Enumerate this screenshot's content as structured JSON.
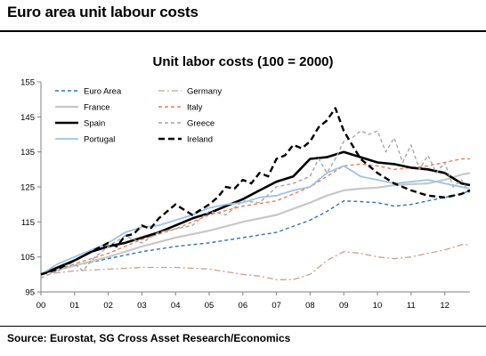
{
  "header": {
    "title": "Euro area unit labour costs"
  },
  "footer": {
    "source": "Source: Eurostat, SG Cross Asset Research/Economics"
  },
  "chart_data": {
    "type": "line",
    "title": "Unit labor costs (100 = 2000)",
    "xlabel": "",
    "ylabel": "",
    "xlim": [
      0,
      12.75
    ],
    "ylim": [
      95,
      155
    ],
    "grid": false,
    "legend_position": "top-left",
    "x_ticks": [
      "00",
      "01",
      "02",
      "03",
      "04",
      "05",
      "06",
      "07",
      "08",
      "09",
      "10",
      "11",
      "12"
    ],
    "y_ticks": [
      95,
      105,
      115,
      125,
      135,
      145,
      155
    ],
    "series": [
      {
        "name": "Euro Area",
        "color": "#2e75b6",
        "dash": "dash",
        "width": 1.4,
        "x": [
          0,
          1,
          2,
          3,
          4,
          5,
          6,
          7,
          8,
          8.5,
          9,
          9.5,
          10,
          10.5,
          11,
          11.5,
          12,
          12.5,
          12.75
        ],
        "y": [
          100,
          102.5,
          104.5,
          106.5,
          108,
          109,
          110.5,
          112,
          115.5,
          118,
          121,
          120.8,
          120.5,
          119.5,
          120,
          121,
          122,
          123,
          124
        ]
      },
      {
        "name": "Germany",
        "color": "#c9a08e",
        "dash": "dashdot",
        "width": 1.3,
        "x": [
          0,
          0.5,
          1,
          2,
          3,
          4,
          5,
          6,
          6.5,
          7,
          7.5,
          8,
          8.5,
          9,
          9.5,
          10,
          10.5,
          11,
          11.5,
          12,
          12.5,
          12.75
        ],
        "y": [
          100,
          100.5,
          101,
          101.5,
          102,
          102,
          101.5,
          100,
          99.5,
          98.5,
          98.5,
          100,
          104,
          106.5,
          106,
          105,
          104.5,
          105,
          106,
          107,
          108.5,
          108.5
        ]
      },
      {
        "name": "France",
        "color": "#c8c8c8",
        "dash": "solid",
        "width": 2.2,
        "x": [
          0,
          1,
          2,
          3,
          4,
          5,
          6,
          7,
          8,
          8.5,
          9,
          9.5,
          10,
          10.5,
          11,
          11.5,
          12,
          12.5,
          12.75
        ],
        "y": [
          100,
          102.5,
          105,
          108,
          110.5,
          112.5,
          115,
          117,
          120.5,
          122.5,
          124,
          124.5,
          124.8,
          125.5,
          125.8,
          126,
          127,
          128.5,
          129
        ]
      },
      {
        "name": "Italy",
        "color": "#f07d55",
        "dash": "dash",
        "width": 1.4,
        "x": [
          0,
          1,
          2,
          3,
          4,
          5,
          6,
          7,
          7.5,
          8,
          8.5,
          9,
          9.5,
          10,
          10.5,
          11,
          11.5,
          12,
          12.5,
          12.75
        ],
        "y": [
          100,
          103,
          106,
          110,
          113,
          117,
          119.5,
          121,
          123,
          125,
          128,
          131,
          131.5,
          131,
          130,
          130.5,
          131,
          132,
          133,
          133
        ]
      },
      {
        "name": "Spain",
        "color": "#000000",
        "dash": "solid",
        "width": 2.6,
        "x": [
          0,
          0.5,
          1,
          1.5,
          2,
          2.5,
          3,
          3.5,
          4,
          4.5,
          5,
          5.5,
          6,
          6.5,
          7,
          7.5,
          8,
          8.5,
          9,
          9.5,
          10,
          10.5,
          11,
          11.5,
          12,
          12.5,
          12.75
        ],
        "y": [
          100,
          102,
          104,
          106.5,
          108,
          109,
          110.5,
          112,
          114,
          116,
          117.5,
          119.5,
          121.5,
          124,
          126.5,
          128,
          133,
          133.5,
          135,
          133.5,
          132,
          131.5,
          130.5,
          130,
          129,
          126,
          125.5
        ]
      },
      {
        "name": "Greece",
        "color": "#a6a6a6",
        "dash": "dash",
        "width": 1.4,
        "x": [
          0,
          0.5,
          1,
          1.25,
          1.5,
          2,
          2.5,
          3,
          3.5,
          4,
          4.5,
          5,
          5.5,
          6,
          6.5,
          7,
          7.5,
          8,
          8.25,
          8.5,
          8.75,
          9,
          9.25,
          9.5,
          9.75,
          10,
          10.25,
          10.5,
          10.75,
          11,
          11.25,
          11.5,
          11.75,
          12,
          12.25,
          12.5,
          12.75
        ],
        "y": [
          99,
          101,
          103,
          101,
          104,
          108,
          111,
          109,
          112,
          113,
          114,
          118,
          117,
          121,
          120.5,
          125,
          126,
          128,
          133,
          129,
          133,
          138,
          139,
          141,
          140,
          141,
          135,
          139,
          132,
          137,
          130,
          134,
          129,
          132,
          125,
          127,
          123
        ]
      },
      {
        "name": "Portugal",
        "color": "#9dc3e6",
        "dash": "solid",
        "width": 1.8,
        "x": [
          0,
          0.5,
          1,
          1.5,
          2,
          2.5,
          3,
          3.5,
          4,
          4.5,
          5,
          5.5,
          6,
          6.5,
          7,
          7.5,
          8,
          8.5,
          9,
          9.5,
          10,
          10.5,
          11,
          11.5,
          12,
          12.5,
          12.75
        ],
        "y": [
          100,
          103,
          105,
          107,
          109,
          112,
          113.5,
          114,
          115.5,
          117,
          119,
          120,
          120.5,
          122,
          122.5,
          124,
          125,
          129,
          131,
          128,
          127,
          126,
          126.5,
          127,
          126,
          125,
          124.5
        ]
      },
      {
        "name": "Ireland",
        "color": "#000000",
        "dash": "dashbold",
        "width": 2.4,
        "x": [
          0,
          0.5,
          1,
          1.5,
          2,
          2.25,
          2.5,
          2.75,
          3,
          3.25,
          3.5,
          3.75,
          4,
          4.5,
          5,
          5.25,
          5.5,
          5.75,
          6,
          6.25,
          6.5,
          6.75,
          7,
          7.25,
          7.5,
          7.75,
          8,
          8.25,
          8.5,
          8.75,
          9,
          9.5,
          10,
          10.5,
          11,
          11.5,
          12,
          12.5,
          12.75
        ],
        "y": [
          100,
          101.5,
          104,
          106.5,
          109,
          108,
          111,
          111.5,
          114,
          113,
          116,
          118,
          120,
          117,
          120,
          122,
          125,
          124.5,
          127,
          126,
          129,
          128,
          133,
          134,
          137,
          136,
          138,
          142,
          144,
          147.5,
          141,
          133,
          129,
          126,
          124,
          122.5,
          122,
          123,
          124
        ]
      }
    ]
  }
}
